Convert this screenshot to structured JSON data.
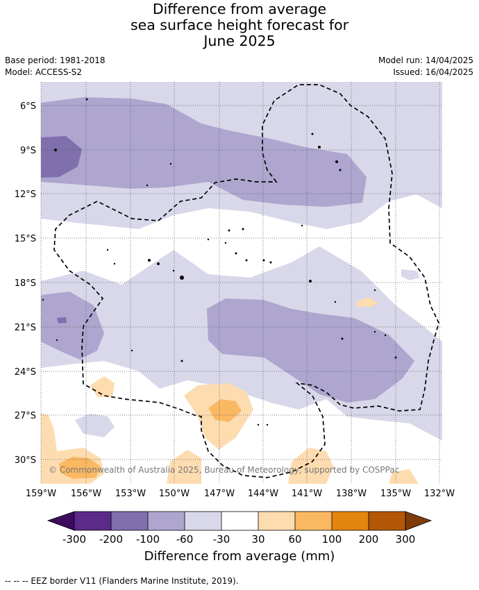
{
  "title_lines": [
    "Difference from average",
    "sea surface height forecast for",
    "June 2025"
  ],
  "meta": {
    "base_period": "Base period: 1981-2018",
    "model": "Model: ACCESS-S2",
    "model_run": "Model run: 14/04/2025",
    "issued": "Issued: 16/04/2025"
  },
  "map": {
    "lat_labels": [
      "6°S",
      "9°S",
      "12°S",
      "15°S",
      "18°S",
      "21°S",
      "24°S",
      "27°S",
      "30°S"
    ],
    "lat_values": [
      -6,
      -9,
      -12,
      -15,
      -18,
      -21,
      -24,
      -27,
      -30
    ],
    "lon_labels": [
      "159°W",
      "156°W",
      "153°W",
      "150°W",
      "147°W",
      "144°W",
      "141°W",
      "138°W",
      "135°W",
      "132°W"
    ],
    "lon_values": [
      -159,
      -156,
      -153,
      -150,
      -147,
      -144,
      -141,
      -138,
      -135,
      -132
    ],
    "extent": {
      "lon_min": -159.2,
      "lon_max": -131.8,
      "lat_min": -31.6,
      "lat_max": -4.6
    },
    "copyright": "© Commonwealth of Australia 2025, Bureau of Meteorology, supported by COSPPac",
    "grid": true
  },
  "colorbar": {
    "tick_labels": [
      "-300",
      "-200",
      "-100",
      "-60",
      "-30",
      "30",
      "60",
      "100",
      "200",
      "300"
    ],
    "colors": [
      "#3d0a5e",
      "#5b2a8a",
      "#7f6fad",
      "#aea6cf",
      "#d8d8ea",
      "#ffffff",
      "#fddcb0",
      "#fbb862",
      "#e3850f",
      "#b35806",
      "#7f3b08"
    ],
    "label": "Difference from average (mm)"
  },
  "footnote": "-- -- -- EEZ border V11 (Flanders Marine Institute, 2019)."
}
